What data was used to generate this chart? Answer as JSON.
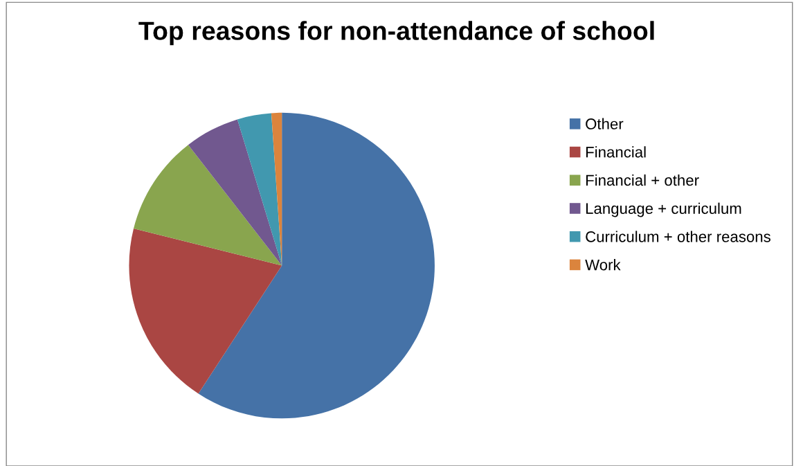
{
  "chart_data": {
    "type": "pie",
    "title": "Top reasons for non-attendance of school",
    "categories": [
      "Other",
      "Financial",
      "Financial + other",
      "Language + curriculum",
      "Curriculum + other reasons",
      "Work"
    ],
    "values": [
      59.2,
      19.7,
      10.6,
      5.8,
      3.6,
      1.1
    ],
    "colors": [
      "#4572a7",
      "#aa4643",
      "#89a54e",
      "#71588f",
      "#4198af",
      "#db843d"
    ],
    "legend": "right"
  }
}
